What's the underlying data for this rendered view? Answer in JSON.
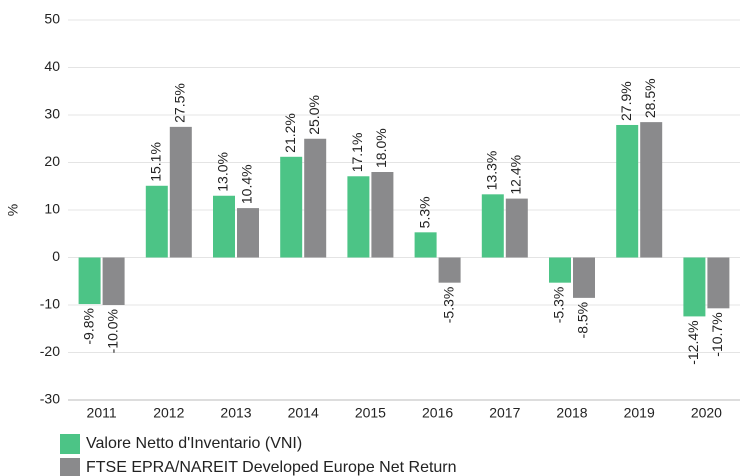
{
  "chart_data": {
    "type": "bar",
    "ylabel": "%",
    "categories": [
      "2011",
      "2012",
      "2013",
      "2014",
      "2015",
      "2016",
      "2017",
      "2018",
      "2019",
      "2020"
    ],
    "series": [
      {
        "name": "Valore Netto d'Inventario (VNI)",
        "color": "#4cc486",
        "values": [
          -9.8,
          15.1,
          13.0,
          21.2,
          17.1,
          5.3,
          13.3,
          -5.3,
          27.9,
          -12.4
        ],
        "value_labels": [
          "-9.8%",
          "15.1%",
          "13.0%",
          "21.2%",
          "17.1%",
          "5.3%",
          "13.3%",
          "-5.3%",
          "27.9%",
          "-12.4%"
        ]
      },
      {
        "name": "FTSE EPRA/NAREIT Developed Europe Net Return",
        "color": "#8a8a8c",
        "values": [
          -10.0,
          27.5,
          10.4,
          25.0,
          18.0,
          -5.3,
          12.4,
          -8.5,
          28.5,
          -10.7
        ],
        "value_labels": [
          "-10.0%",
          "27.5%",
          "10.4%",
          "25.0%",
          "18.0%",
          "-5.3%",
          "12.4%",
          "-8.5%",
          "28.5%",
          "-10.7%"
        ]
      }
    ],
    "ylim": [
      -30,
      50
    ],
    "yticks": [
      -30,
      -20,
      -10,
      0,
      10,
      20,
      30,
      40,
      50
    ],
    "grid": true
  }
}
